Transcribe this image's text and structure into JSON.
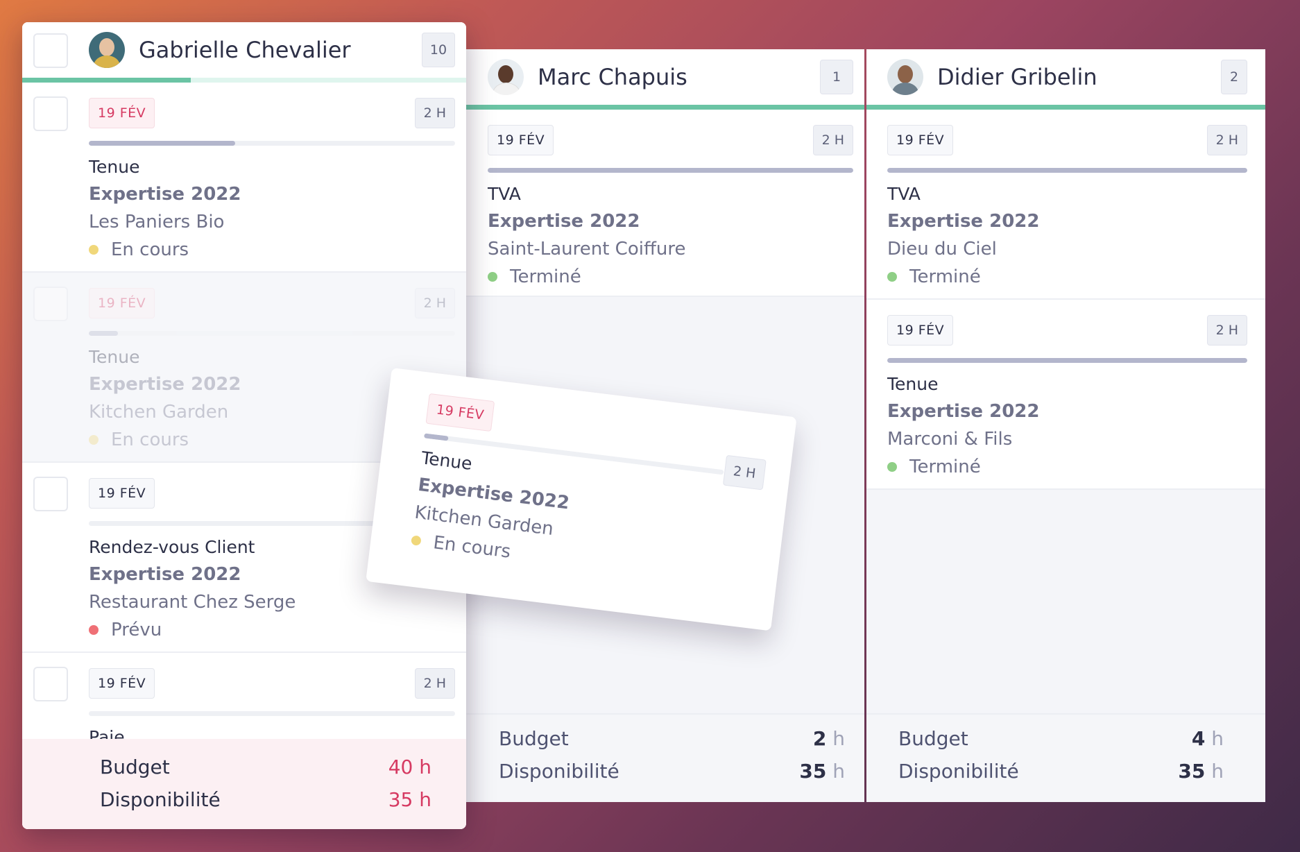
{
  "columns": {
    "gabrielle": {
      "name": "Gabrielle Chevalier",
      "count": "10",
      "progress": 0.38,
      "tasks": [
        {
          "date": "19 FÉV",
          "duration": "2 H",
          "type": "Tenue",
          "project": "Expertise 2022",
          "client": "Les Paniers Bio",
          "status": "En cours",
          "status_color": "#f0d77a",
          "progress": 0.4
        },
        {
          "date": "19 FÉV",
          "duration": "2 H",
          "type": "Tenue",
          "project": "Expertise 2022",
          "client": "Kitchen Garden",
          "status": "En cours",
          "status_color": "#f0d77a",
          "progress": 0.08
        },
        {
          "date": "19 FÉV",
          "duration": "",
          "type": "Rendez-vous Client",
          "project": "Expertise 2022",
          "client": "Restaurant Chez Serge",
          "status": "Prévu",
          "status_color": "#ef7076",
          "progress": 0
        },
        {
          "date": "19 FÉV",
          "duration": "2 H",
          "type": "Paie",
          "project": "",
          "client": "",
          "status": "",
          "status_color": "#f0d77a",
          "progress": 0
        }
      ],
      "budget_label": "Budget",
      "budget_value": "40 h",
      "dispo_label": "Disponibilité",
      "dispo_value": "35 h"
    },
    "marc": {
      "name": "Marc Chapuis",
      "count": "1",
      "progress": 1.0,
      "tasks": [
        {
          "date": "19 FÉV",
          "duration": "2 H",
          "type": "TVA",
          "project": "Expertise 2022",
          "client": "Saint-Laurent Coiffure",
          "status": "Terminé",
          "status_color": "#8fcf86",
          "progress": 1.0
        }
      ],
      "budget_label": "Budget",
      "budget_num": "2",
      "budget_unit": "h",
      "dispo_label": "Disponibilité",
      "dispo_num": "35",
      "dispo_unit": "h"
    },
    "didier": {
      "name": "Didier Gribelin",
      "count": "2",
      "progress": 1.0,
      "tasks": [
        {
          "date": "19 FÉV",
          "duration": "2 H",
          "type": "TVA",
          "project": "Expertise 2022",
          "client": "Dieu du Ciel",
          "status": "Terminé",
          "status_color": "#8fcf86",
          "progress": 1.0
        },
        {
          "date": "19 FÉV",
          "duration": "2 H",
          "type": "Tenue",
          "project": "Expertise 2022",
          "client": "Marconi & Fils",
          "status": "Terminé",
          "status_color": "#8fcf86",
          "progress": 1.0
        }
      ],
      "budget_label": "Budget",
      "budget_num": "4",
      "budget_unit": "h",
      "dispo_label": "Disponibilité",
      "dispo_num": "35",
      "dispo_unit": "h"
    }
  },
  "dragged_card": {
    "date": "19 FÉV",
    "duration": "2 H",
    "type": "Tenue",
    "project": "Expertise 2022",
    "client": "Kitchen Garden",
    "status": "En cours",
    "status_color": "#f0d77a",
    "progress": 0.08
  }
}
